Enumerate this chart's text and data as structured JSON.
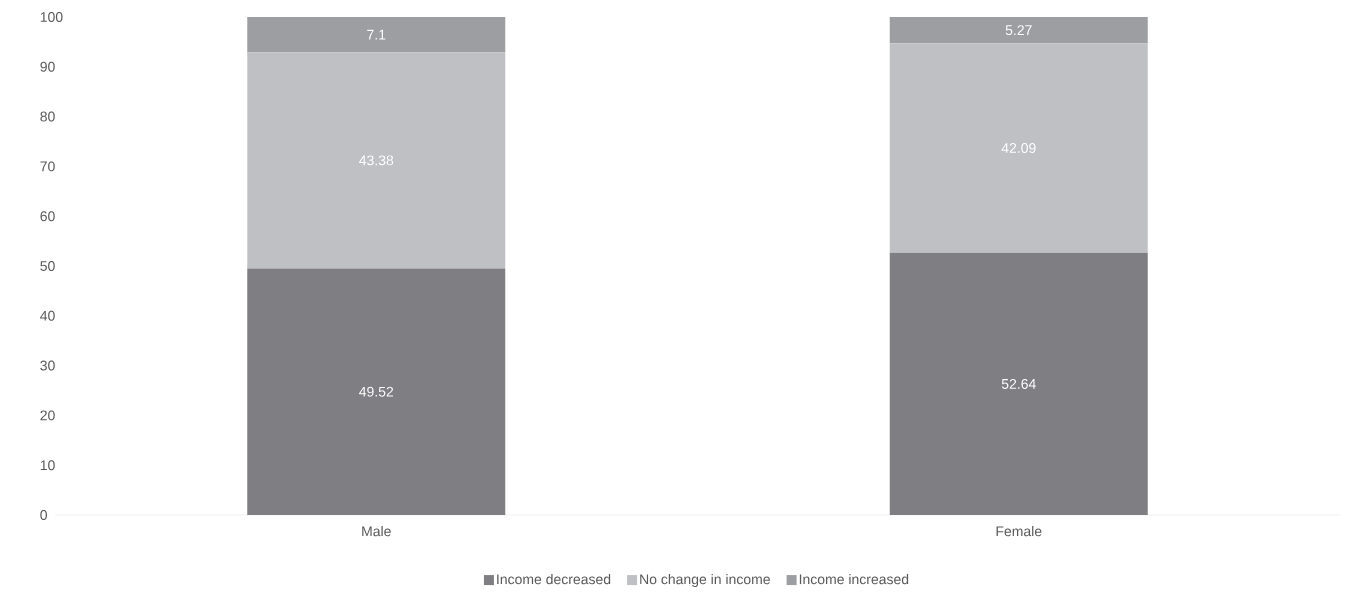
{
  "chart_data": {
    "type": "bar",
    "stacked": true,
    "categories": [
      "Male",
      "Female"
    ],
    "series": [
      {
        "name": "Income decreased",
        "color": "#7f7f83",
        "values": [
          49.52,
          52.64
        ]
      },
      {
        "name": "No change in income",
        "color": "#bfc0c4",
        "values": [
          43.38,
          42.09
        ]
      },
      {
        "name": "Income increased",
        "color": "#9d9ea2",
        "values": [
          7.1,
          5.27
        ]
      }
    ],
    "ylim": [
      0,
      100
    ],
    "yticks": [
      0,
      10,
      20,
      30,
      40,
      50,
      60,
      70,
      80,
      90,
      100
    ],
    "data_labels": true,
    "legend": "bottom",
    "grid": false
  }
}
